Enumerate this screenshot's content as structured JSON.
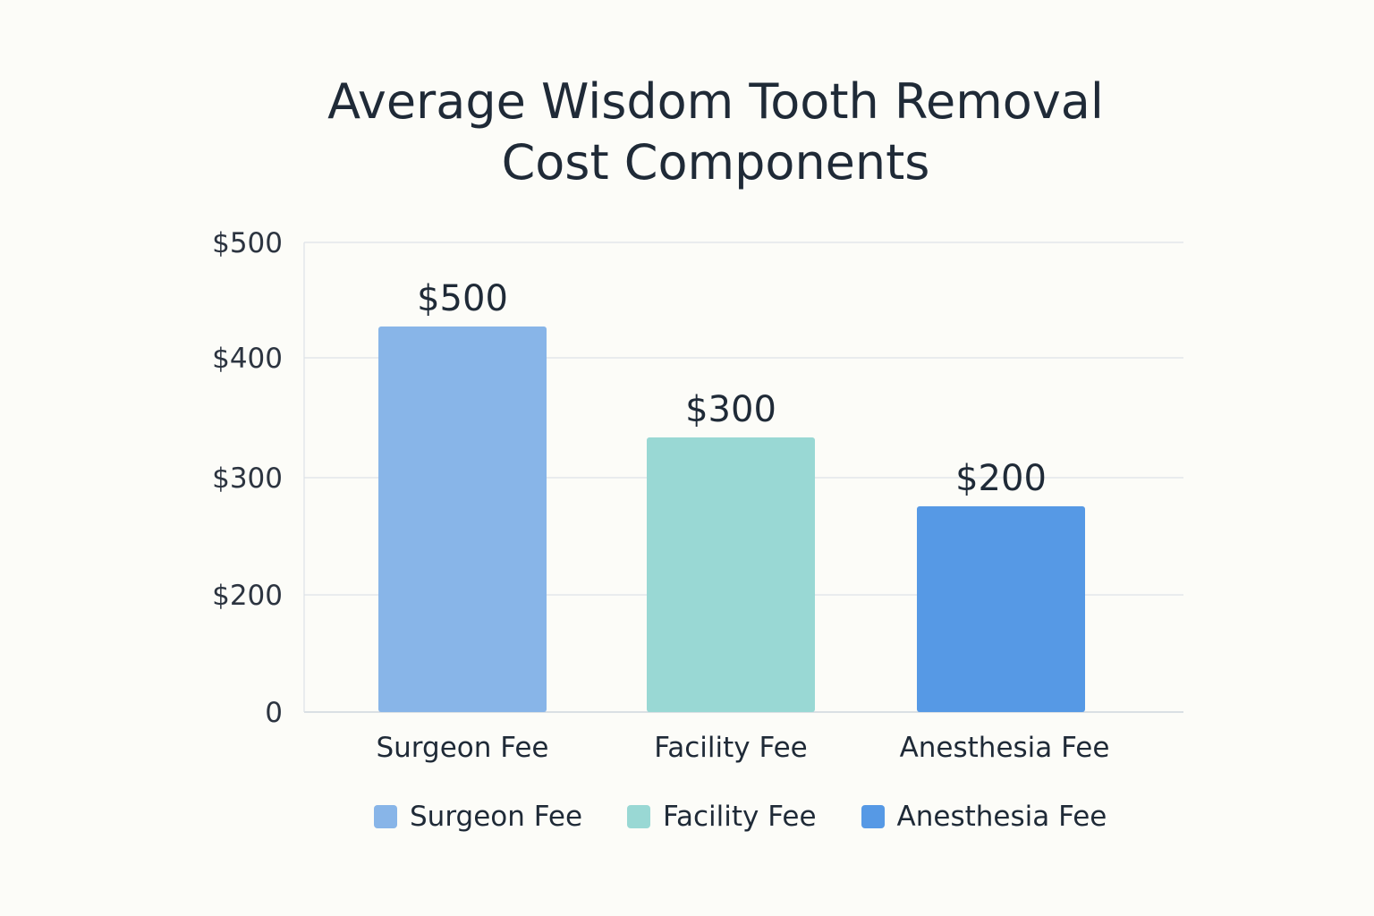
{
  "chart_data": {
    "type": "bar",
    "title_lines": [
      "Average Wisdom Tooth Removal",
      "Cost Components"
    ],
    "categories": [
      "Surgeon Fee",
      "Facility Fee",
      "Anesthesia Fee"
    ],
    "values": [
      500,
      300,
      200
    ],
    "value_labels": [
      "$500",
      "$300",
      "$200"
    ],
    "colors": [
      "#88b5e8",
      "#99d8d4",
      "#5699e5"
    ],
    "y_ticks": [
      {
        "value": 0,
        "label": "0"
      },
      {
        "value": 200,
        "label": "$200"
      },
      {
        "value": 300,
        "label": "$300"
      },
      {
        "value": 400,
        "label": "$400"
      },
      {
        "value": 500,
        "label": "$500"
      }
    ],
    "grid": true,
    "legend": {
      "position": "bottom",
      "items": [
        {
          "label": "Surgeon Fee",
          "color": "#88b5e8"
        },
        {
          "label": "Facility Fee",
          "color": "#99d8d4"
        },
        {
          "label": "Anesthesia Fee",
          "color": "#5699e5"
        }
      ]
    }
  }
}
